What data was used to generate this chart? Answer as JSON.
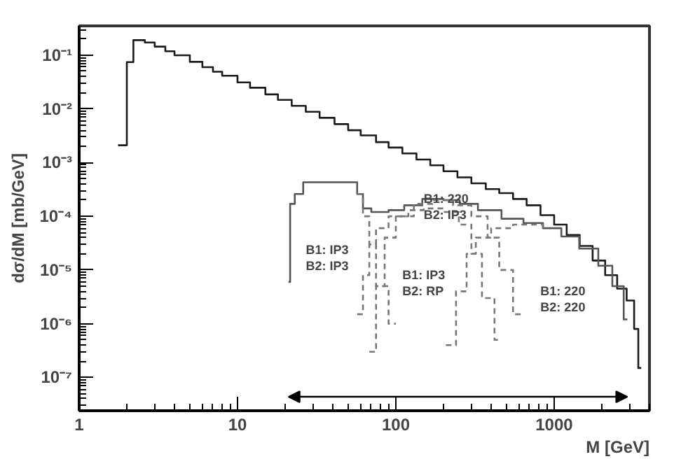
{
  "chart_data": {
    "type": "step",
    "xlabel": "M [GeV]",
    "ylabel": "dσ/dM [mb/GeV]",
    "log": "xy",
    "grid": false,
    "xlim": [
      1,
      4000
    ],
    "ylim": [
      2.4e-08,
      0.35
    ],
    "xticks": [
      1,
      10,
      100,
      1000
    ],
    "yticks": [
      {
        "value": 1e-07,
        "label": "10⁻⁷"
      },
      {
        "value": 1e-06,
        "label": "10⁻⁶"
      },
      {
        "value": 1e-05,
        "label": "10⁻⁵"
      },
      {
        "value": 0.0001,
        "label": "10⁻⁴"
      },
      {
        "value": 0.001,
        "label": "10⁻³"
      },
      {
        "value": 0.01,
        "label": "10⁻²"
      },
      {
        "value": 0.1,
        "label": "10⁻¹"
      }
    ],
    "series": [
      {
        "color": "#1a1a1a",
        "line_style": "solid",
        "x": [
          1.76,
          2.0,
          2.2,
          2.6,
          3,
          3.5,
          4,
          5,
          6,
          7,
          8,
          10,
          12,
          15,
          18,
          22,
          27,
          33,
          41,
          50,
          60,
          75,
          90,
          110,
          135,
          165,
          200,
          245,
          300,
          370,
          450,
          550,
          670,
          820,
          1000,
          1200,
          1450,
          1750,
          2100,
          2500,
          2870,
          3200,
          3400,
          3550
        ],
        "values": [
          0.0021,
          0.074,
          0.19,
          0.172,
          0.144,
          0.118,
          0.0995,
          0.075,
          0.0596,
          0.049,
          0.0413,
          0.0311,
          0.0247,
          0.0186,
          0.0147,
          0.0114,
          0.0088,
          0.0068,
          0.0052,
          0.004,
          0.0032,
          0.0024,
          0.0019,
          0.00148,
          0.00114,
          0.00089,
          0.00069,
          0.00053,
          0.00041,
          0.00032,
          0.00027,
          0.00021,
          0.00016,
          0.000105,
          7e-05,
          4.5e-05,
          2.8e-05,
          1.5e-05,
          8e-06,
          4.5e-06,
          2.7e-06,
          8e-07,
          1.5e-07,
          1.5e-07
        ]
      },
      {
        "color": "#555555",
        "line_style": "solid",
        "x": [
          21,
          21.5,
          23,
          26,
          57,
          62,
          70,
          90,
          113,
          147,
          200,
          253,
          330,
          465,
          640,
          850,
          1110,
          1440,
          1900,
          2330,
          2750,
          2900
        ],
        "values": [
          6e-06,
          0.00017,
          0.00026,
          0.00043,
          0.00026,
          0.00014,
          0.00012,
          0.00013,
          0.00016,
          0.00021,
          0.0002,
          0.00017,
          0.00013,
          9e-05,
          7.5e-05,
          6e-05,
          4.2e-05,
          2.5e-05,
          1.2e-05,
          5e-06,
          1.2e-06,
          1.2e-06
        ]
      },
      {
        "color": "#777777",
        "line_style": "dashed",
        "x": [
          57,
          62,
          68,
          75,
          90,
          100
        ],
        "values": [
          0.00026,
          0.0001,
          3e-05,
          5e-06,
          1e-06,
          1e-06
        ]
      },
      {
        "color": "#777777",
        "line_style": "dashed",
        "x": [
          57,
          62,
          68,
          75,
          90,
          120,
          150,
          200,
          250,
          300,
          350,
          420,
          465
        ],
        "values": [
          1.5e-06,
          8e-06,
          3e-05,
          6e-05,
          0.0001,
          0.00013,
          0.00014,
          0.00012,
          7e-05,
          2e-05,
          3e-06,
          5e-07,
          5e-07
        ]
      },
      {
        "color": "#777777",
        "line_style": "dashed",
        "x": [
          68,
          75,
          85,
          100,
          130,
          170,
          230,
          300,
          380,
          450,
          550,
          640
        ],
        "values": [
          3e-07,
          5e-06,
          4e-05,
          0.0001,
          0.00017,
          0.0002,
          0.00016,
          0.0001,
          4e-05,
          1e-05,
          1.5e-06,
          1.5e-06
        ]
      },
      {
        "color": "#777777",
        "line_style": "dashed",
        "x": [
          207,
          240,
          280,
          320,
          400,
          550,
          850
        ],
        "values": [
          4e-07,
          4e-06,
          2e-05,
          4e-05,
          6e-05,
          7e-05,
          6e-05
        ]
      }
    ],
    "annotations": [
      "B1: IP3\nB2: IP3",
      "B1: 220\nB2: IP3",
      "B1: IP3\nB2: RP",
      "B1: 220\nB2: 220"
    ]
  }
}
